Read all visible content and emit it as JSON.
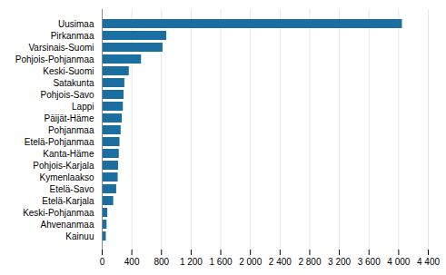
{
  "chart_data": {
    "type": "bar",
    "orientation": "horizontal",
    "categories": [
      "Kainuu",
      "Ahvenanmaa",
      "Keski-Pohjanmaa",
      "Etelä-Karjala",
      "Etelä-Savo",
      "Kymenlaakso",
      "Pohjois-Karjala",
      "Kanta-Häme",
      "Etelä-Pohjanmaa",
      "Pohjanmaa",
      "Päijät-Häme",
      "Lappi",
      "Pohjois-Savo",
      "Satakunta",
      "Keski-Suomi",
      "Pohjois-Pohjanmaa",
      "Varsinais-Suomi",
      "Pirkanmaa",
      "Uusimaa"
    ],
    "values": [
      55,
      65,
      75,
      155,
      195,
      215,
      220,
      230,
      240,
      255,
      270,
      285,
      295,
      305,
      365,
      530,
      820,
      870,
      4050
    ],
    "color": "#1a6ea0",
    "xlim": [
      0,
      4400
    ],
    "xticks": [
      0,
      400,
      800,
      {
        "value": 1200,
        "label": "1 200"
      },
      {
        "value": 1600,
        "label": "1 600"
      },
      {
        "value": 2000,
        "label": "2 000"
      },
      {
        "value": 2400,
        "label": "2 400"
      },
      {
        "value": 2800,
        "label": "2 800"
      },
      {
        "value": 3200,
        "label": "3 200"
      },
      {
        "value": 3600,
        "label": "3 600"
      },
      {
        "value": 4000,
        "label": "4 000"
      },
      {
        "value": 4400,
        "label": "4 400"
      }
    ],
    "grid": true
  }
}
